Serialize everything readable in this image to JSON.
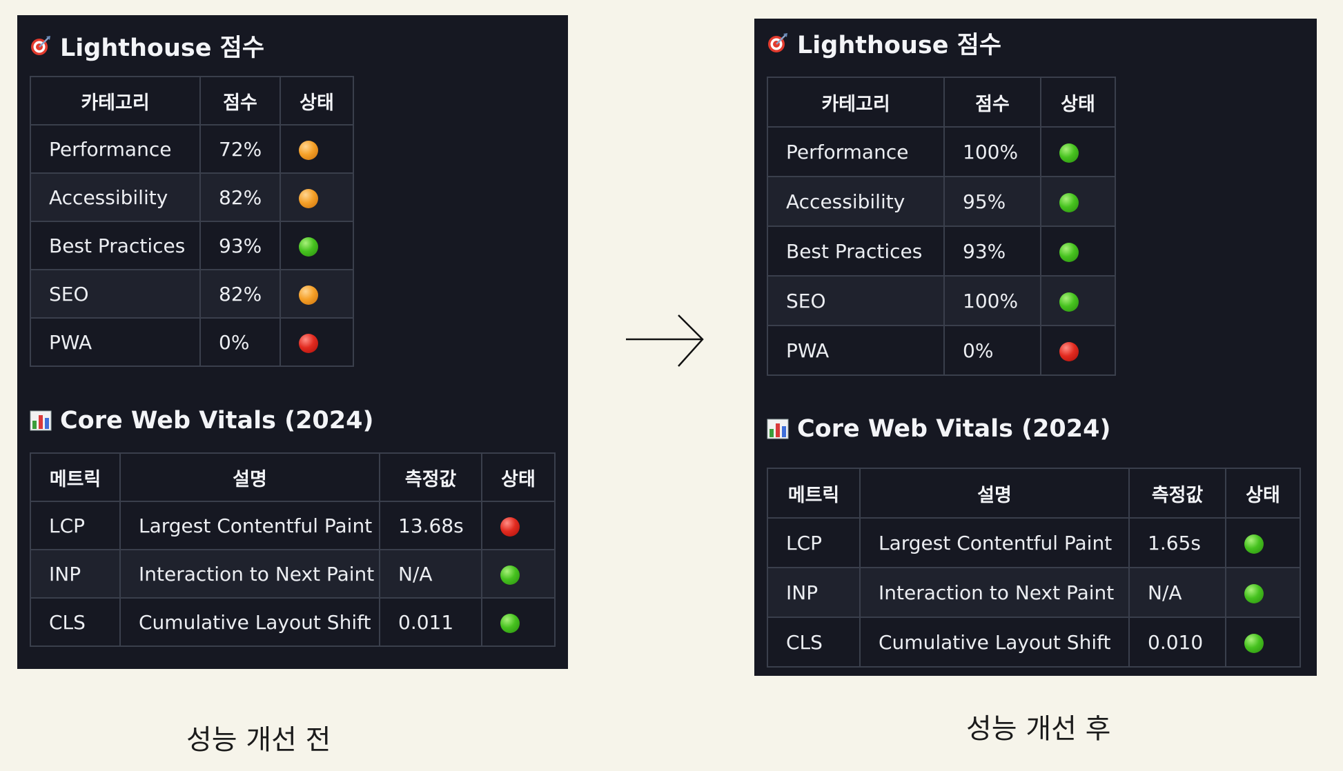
{
  "before": {
    "lighthouse": {
      "title": "Lighthouse 점수",
      "title_icon": "dart-target-icon",
      "headers": [
        "카테고리",
        "점수",
        "상태"
      ],
      "rows": [
        {
          "category": "Performance",
          "score": "72%",
          "status": "orange"
        },
        {
          "category": "Accessibility",
          "score": "82%",
          "status": "orange"
        },
        {
          "category": "Best Practices",
          "score": "93%",
          "status": "green"
        },
        {
          "category": "SEO",
          "score": "82%",
          "status": "orange"
        },
        {
          "category": "PWA",
          "score": "0%",
          "status": "red"
        }
      ]
    },
    "vitals": {
      "title": "Core Web Vitals (2024)",
      "title_icon": "bar-chart-icon",
      "headers": [
        "메트릭",
        "설명",
        "측정값",
        "상태"
      ],
      "rows": [
        {
          "metric": "LCP",
          "desc": "Largest Contentful Paint",
          "value": "13.68s",
          "status": "red"
        },
        {
          "metric": "INP",
          "desc": "Interaction to Next Paint",
          "value": "N/A",
          "status": "green"
        },
        {
          "metric": "CLS",
          "desc": "Cumulative Layout Shift",
          "value": "0.011",
          "status": "green"
        }
      ]
    },
    "caption": "성능 개선 전"
  },
  "after": {
    "lighthouse": {
      "title": "Lighthouse 점수",
      "title_icon": "dart-target-icon",
      "headers": [
        "카테고리",
        "점수",
        "상태"
      ],
      "rows": [
        {
          "category": "Performance",
          "score": "100%",
          "status": "green"
        },
        {
          "category": "Accessibility",
          "score": "95%",
          "status": "green"
        },
        {
          "category": "Best Practices",
          "score": "93%",
          "status": "green"
        },
        {
          "category": "SEO",
          "score": "100%",
          "status": "green"
        },
        {
          "category": "PWA",
          "score": "0%",
          "status": "red"
        }
      ]
    },
    "vitals": {
      "title": "Core Web Vitals (2024)",
      "title_icon": "bar-chart-icon",
      "headers": [
        "메트릭",
        "설명",
        "측정값",
        "상태"
      ],
      "rows": [
        {
          "metric": "LCP",
          "desc": "Largest Contentful Paint",
          "value": "1.65s",
          "status": "green"
        },
        {
          "metric": "INP",
          "desc": "Interaction to Next Paint",
          "value": "N/A",
          "status": "green"
        },
        {
          "metric": "CLS",
          "desc": "Cumulative Layout Shift",
          "value": "0.010",
          "status": "green"
        }
      ]
    },
    "caption": "성능 개선 후"
  },
  "arrow_icon": "right-arrow-icon",
  "colors": {
    "panel_bg": "#161822",
    "row_alt_bg": "#1f222d",
    "border": "#3a3f4c",
    "page_bg": "#f6f4ea",
    "status_green": "#46c21f",
    "status_orange": "#f5a028",
    "status_red": "#e22b20"
  }
}
